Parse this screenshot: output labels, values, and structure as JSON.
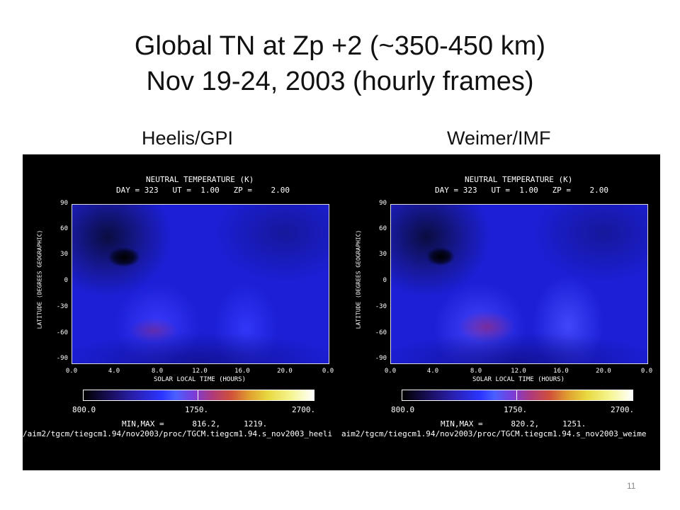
{
  "slide": {
    "title_line1": "Global TN at Zp +2 (~350-450 km)",
    "title_line2": "Nov 19-24, 2003  (hourly frames)",
    "subhead_left": "Heelis/GPI",
    "subhead_right": "Weimer/IMF",
    "slide_number": "11"
  },
  "panels": [
    {
      "header1": "NEUTRAL TEMPERATURE (K)",
      "header2": "DAY = 323   UT =  1.00   ZP =    2.00",
      "y_axis_label": "LATITUDE (DEGREES GEOGRAPHIC)",
      "x_axis_label": "SOLAR LOCAL TIME (HOURS)",
      "y_ticks": [
        "90",
        "60",
        "30",
        "0",
        "-30",
        "-60",
        "-90"
      ],
      "x_ticks": [
        "0.0",
        "4.0",
        "8.0",
        "12.0",
        "16.0",
        "20.0",
        "0.0"
      ],
      "colorbar_labels": [
        "800.0",
        "1750.",
        "2700."
      ],
      "minmax": "MIN,MAX =      816.2,     1219.",
      "path": "/aim2/tgcm/tiegcm1.94/nov2003/proc/TGCM.tiegcm1.94.s_nov2003_heeli"
    },
    {
      "header1": "NEUTRAL TEMPERATURE (K)",
      "header2": "DAY = 323   UT =  1.00   ZP =    2.00",
      "y_axis_label": "LATITUDE (DEGREES GEOGRAPHIC)",
      "x_axis_label": "SOLAR LOCAL TIME (HOURS)",
      "y_ticks": [
        "90",
        "60",
        "30",
        "0",
        "-30",
        "-60",
        "-90"
      ],
      "x_ticks": [
        "0.0",
        "4.0",
        "8.0",
        "12.0",
        "16.0",
        "20.0",
        "0.0"
      ],
      "colorbar_labels": [
        "800.0",
        "1750.",
        "2700."
      ],
      "minmax": "MIN,MAX =      820.2,     1251.",
      "path": "aim2/tgcm/tiegcm1.94/nov2003/proc/TGCM.tiegcm1.94.s_nov2003_weime"
    }
  ],
  "colors": {
    "background": "#ffffff",
    "figure_background": "#000000",
    "map_base": "#1c1fd6"
  }
}
